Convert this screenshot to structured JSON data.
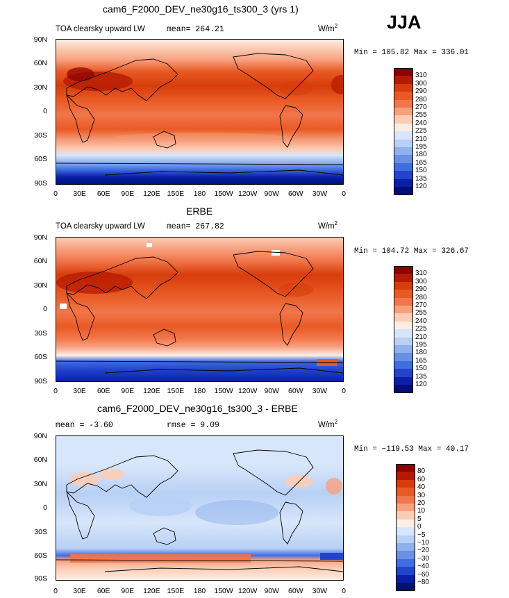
{
  "season": "JJA",
  "panels": [
    {
      "id": "model",
      "title": "cam6_F2000_DEV_ne30g16_ts300_3 (yrs 1)",
      "left_label": "TOA clearsky upward LW",
      "stat_label": "mean= 264.21",
      "units": "W/m",
      "units_exp": "2",
      "minmax": "Min = 105.82 Max = 336.01",
      "colorbar_levels": [
        "310",
        "300",
        "290",
        "280",
        "270",
        "255",
        "240",
        "225",
        "210",
        "195",
        "180",
        "165",
        "150",
        "135",
        "120"
      ],
      "colorbar_colors": [
        "#8b0000",
        "#b51a02",
        "#d73d0b",
        "#e85a24",
        "#f2764a",
        "#f7a07e",
        "#fbcdb5",
        "#fdeee5",
        "#d7e6fa",
        "#b8d0f5",
        "#8fb1ee",
        "#6a8fe4",
        "#3f6ee0",
        "#2244cc",
        "#0a1fa8",
        "#00107a"
      ]
    },
    {
      "id": "obs",
      "title": "ERBE",
      "left_label": "TOA clearsky upward LW",
      "stat_label": "mean= 267.82",
      "units": "W/m",
      "units_exp": "2",
      "minmax": "Min = 104.72 Max = 326.67",
      "colorbar_levels": [
        "310",
        "300",
        "290",
        "280",
        "270",
        "255",
        "240",
        "225",
        "210",
        "195",
        "180",
        "165",
        "150",
        "135",
        "120"
      ],
      "colorbar_colors": [
        "#8b0000",
        "#b51a02",
        "#d73d0b",
        "#e85a24",
        "#f2764a",
        "#f7a07e",
        "#fbcdb5",
        "#fdeee5",
        "#d7e6fa",
        "#b8d0f5",
        "#8fb1ee",
        "#6a8fe4",
        "#3f6ee0",
        "#2244cc",
        "#0a1fa8",
        "#00107a"
      ]
    },
    {
      "id": "diff",
      "title": "cam6_F2000_DEV_ne30g16_ts300_3 - ERBE",
      "left_label": "mean =   -3.60",
      "stat_label": "rmse =    9.09",
      "units": "W/m",
      "units_exp": "2",
      "minmax": "Min = −119.53 Max =  40.17",
      "colorbar_levels": [
        "80",
        "60",
        "40",
        "30",
        "20",
        "10",
        "5",
        "0",
        "−5",
        "−10",
        "−20",
        "−30",
        "−40",
        "−60",
        "−80"
      ],
      "colorbar_colors": [
        "#8b0000",
        "#b51a02",
        "#d73d0b",
        "#e85a24",
        "#f2764a",
        "#f7a07e",
        "#fbcdb5",
        "#fdeee5",
        "#d7e6fa",
        "#b8d0f5",
        "#8fb1ee",
        "#6a8fe4",
        "#3f6ee0",
        "#2244cc",
        "#0a1fa8",
        "#00107a"
      ]
    }
  ],
  "chart_data": [
    {
      "type": "heatmap",
      "title": "cam6_F2000_DEV_ne30g16_ts300_3 (yrs 1)",
      "variable": "TOA clearsky upward LW",
      "units": "W/m2",
      "mean": 264.21,
      "min": 105.82,
      "max": 336.01,
      "levels": [
        120,
        135,
        150,
        165,
        180,
        195,
        210,
        225,
        240,
        255,
        270,
        280,
        290,
        300,
        310
      ],
      "xlim": [
        0,
        360
      ],
      "ylim": [
        -90,
        90
      ]
    },
    {
      "type": "heatmap",
      "title": "ERBE",
      "variable": "TOA clearsky upward LW",
      "units": "W/m2",
      "mean": 267.82,
      "min": 104.72,
      "max": 326.67,
      "levels": [
        120,
        135,
        150,
        165,
        180,
        195,
        210,
        225,
        240,
        255,
        270,
        280,
        290,
        300,
        310
      ],
      "xlim": [
        0,
        360
      ],
      "ylim": [
        -90,
        90
      ]
    },
    {
      "type": "heatmap",
      "title": "cam6_F2000_DEV_ne30g16_ts300_3 - ERBE",
      "units": "W/m2",
      "mean": -3.6,
      "rmse": 9.09,
      "min": -119.53,
      "max": 40.17,
      "levels": [
        -80,
        -60,
        -40,
        -30,
        -20,
        -10,
        -5,
        0,
        5,
        10,
        20,
        30,
        40,
        60,
        80
      ],
      "xlim": [
        0,
        360
      ],
      "ylim": [
        -90,
        90
      ]
    }
  ],
  "axes": {
    "y_ticks": [
      "90N",
      "60N",
      "30N",
      "0",
      "30S",
      "60S",
      "90S"
    ],
    "x_ticks": [
      "0",
      "30E",
      "60E",
      "90E",
      "120E",
      "150E",
      "180",
      "150W",
      "120W",
      "90W",
      "60W",
      "30W",
      "0"
    ]
  }
}
